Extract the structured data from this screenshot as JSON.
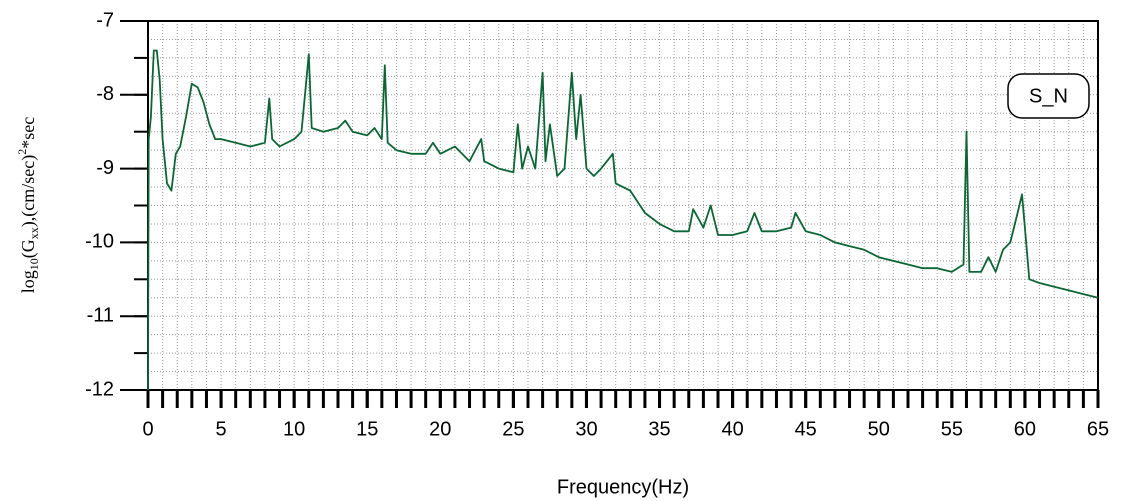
{
  "chart_data": {
    "type": "line",
    "xlabel": "Frequency(Hz)",
    "ylabel": [
      "log",
      "10",
      "(G",
      "xx",
      "),(cm/sec)",
      "2",
      "*sec"
    ],
    "xlim": [
      0,
      65
    ],
    "ylim": [
      -12,
      -7
    ],
    "xticks": [
      0,
      5,
      10,
      15,
      20,
      25,
      30,
      35,
      40,
      45,
      50,
      55,
      60,
      65
    ],
    "yticks": [
      -7,
      -8,
      -9,
      -10,
      -11,
      -12
    ],
    "xminor": 1,
    "yminor": 0.25,
    "grid": true,
    "legend": "upper right",
    "x": [
      0,
      0.05,
      0.2,
      0.4,
      0.6,
      0.8,
      1.0,
      1.3,
      1.6,
      1.9,
      2.2,
      2.6,
      3.0,
      3.4,
      3.8,
      4.2,
      4.6,
      5,
      6,
      7,
      8,
      8.3,
      8.5,
      9,
      10,
      10.5,
      11,
      11.2,
      12,
      13,
      13.5,
      14,
      15,
      15.5,
      16,
      16.2,
      16.4,
      17,
      18,
      19,
      19.5,
      20,
      21,
      22,
      22.8,
      23,
      24,
      25,
      25.3,
      25.6,
      26,
      26.5,
      27,
      27.2,
      27.5,
      28,
      28.5,
      29,
      29.3,
      29.6,
      30,
      30.5,
      31,
      31.8,
      32,
      33,
      34,
      35,
      36,
      37,
      37.3,
      38,
      38.5,
      39,
      40,
      41,
      41.5,
      42,
      43,
      44,
      44.3,
      45,
      46,
      47,
      48,
      49,
      50,
      51,
      52,
      53,
      54,
      55,
      55.8,
      56,
      56.2,
      57,
      57.5,
      58,
      58.5,
      59,
      59.5,
      59.8,
      60,
      60.3,
      61,
      62,
      63,
      64,
      65
    ],
    "series": [
      {
        "name": "S_N",
        "color": "#0b6634",
        "values": [
          -12,
          -8.6,
          -8.3,
          -7.4,
          -7.4,
          -7.8,
          -8.6,
          -9.2,
          -9.3,
          -8.8,
          -8.7,
          -8.3,
          -7.85,
          -7.9,
          -8.1,
          -8.4,
          -8.6,
          -8.6,
          -8.65,
          -8.7,
          -8.65,
          -8.05,
          -8.6,
          -8.7,
          -8.6,
          -8.5,
          -7.45,
          -8.45,
          -8.5,
          -8.45,
          -8.35,
          -8.5,
          -8.55,
          -8.45,
          -8.6,
          -7.6,
          -8.65,
          -8.75,
          -8.8,
          -8.8,
          -8.65,
          -8.8,
          -8.7,
          -8.9,
          -8.6,
          -8.9,
          -9.0,
          -9.05,
          -8.4,
          -9.0,
          -8.7,
          -9.0,
          -7.7,
          -8.9,
          -8.4,
          -9.1,
          -9.0,
          -7.7,
          -8.6,
          -8.0,
          -9.0,
          -9.1,
          -9.0,
          -8.8,
          -9.2,
          -9.3,
          -9.6,
          -9.75,
          -9.85,
          -9.85,
          -9.55,
          -9.8,
          -9.5,
          -9.9,
          -9.9,
          -9.85,
          -9.6,
          -9.85,
          -9.85,
          -9.8,
          -9.6,
          -9.85,
          -9.9,
          -10.0,
          -10.05,
          -10.1,
          -10.2,
          -10.25,
          -10.3,
          -10.35,
          -10.35,
          -10.4,
          -10.3,
          -8.5,
          -10.4,
          -10.4,
          -10.2,
          -10.4,
          -10.1,
          -10.0,
          -9.6,
          -9.35,
          -9.8,
          -10.5,
          -10.55,
          -10.6,
          -10.65,
          -10.7,
          -10.75
        ]
      }
    ]
  }
}
